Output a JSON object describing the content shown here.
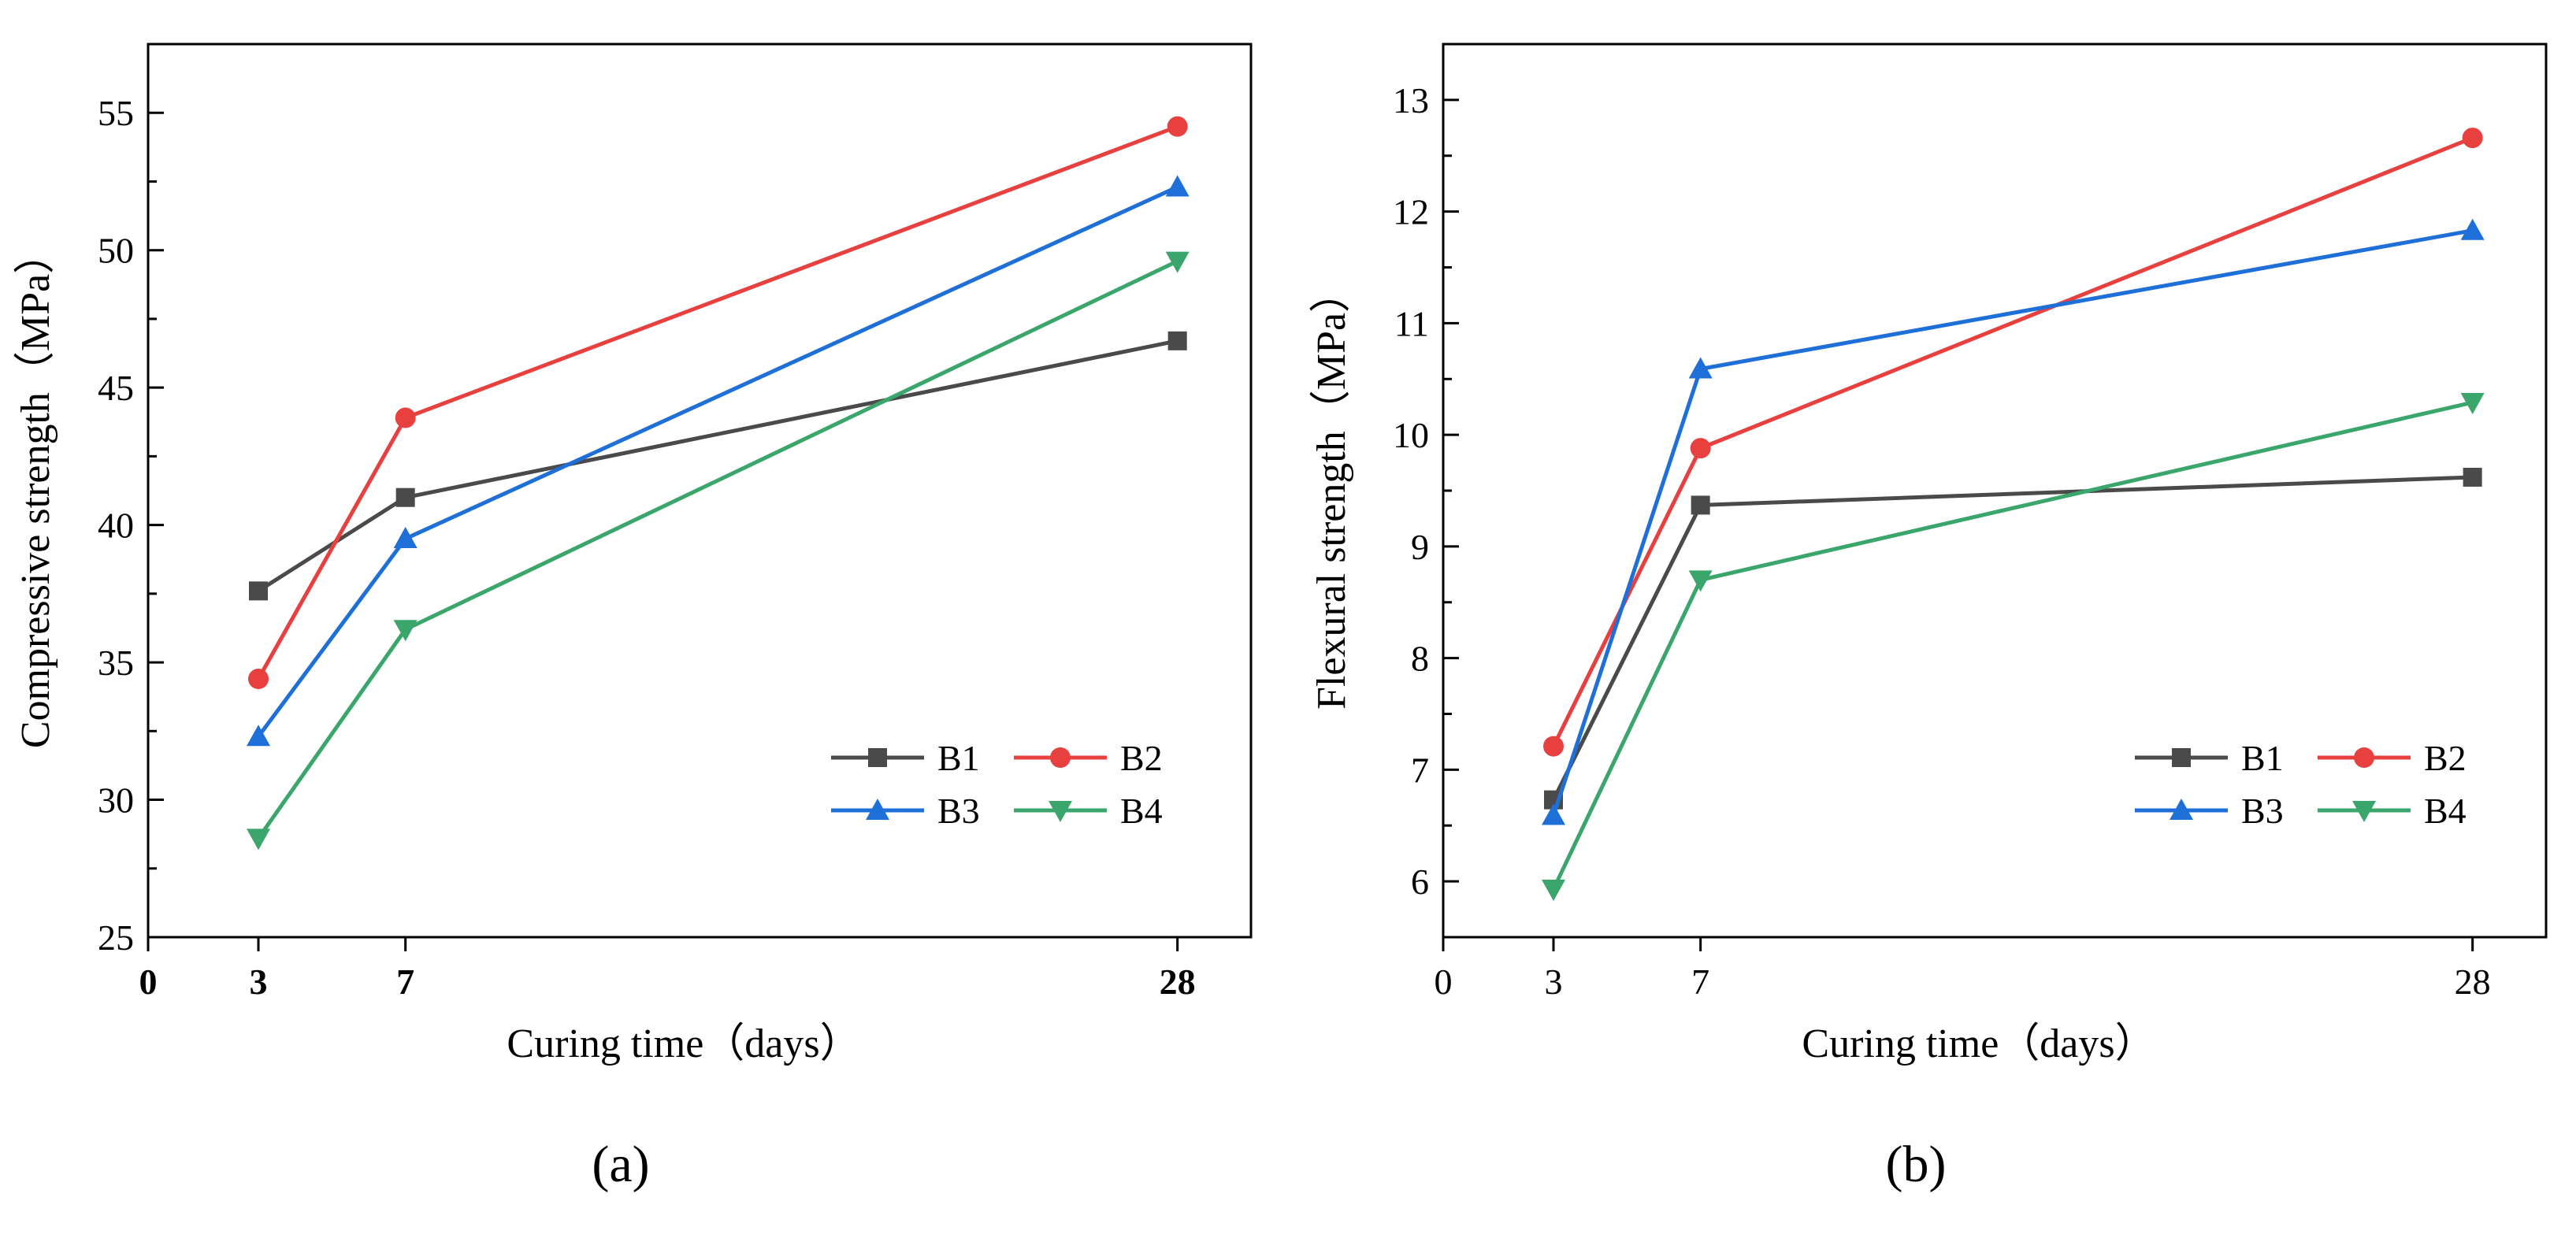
{
  "chart_data": [
    {
      "type": "line",
      "panel_label": "(a)",
      "xlabel": "Curing time（days）",
      "ylabel": "Compressive strength（MPa）",
      "x": [
        3,
        7,
        28
      ],
      "xlim": [
        0,
        30
      ],
      "ylim": [
        25,
        57.5
      ],
      "xticks": [
        0,
        3,
        7,
        28
      ],
      "xtick_labels": [
        "0",
        "3",
        "7",
        "28"
      ],
      "yticks": [
        25,
        30,
        35,
        40,
        45,
        50,
        55
      ],
      "ytick_labels": [
        "25",
        "30",
        "35",
        "40",
        "45",
        "50",
        "55"
      ],
      "grid": false,
      "legend_position": "bottom-right",
      "series": [
        {
          "name": "B1",
          "values": [
            37.6,
            41.0,
            46.7
          ],
          "color": "#4a4a4a",
          "marker": "square"
        },
        {
          "name": "B2",
          "values": [
            34.4,
            43.9,
            54.5
          ],
          "color": "#e8403f",
          "marker": "circle"
        },
        {
          "name": "B3",
          "values": [
            32.3,
            39.5,
            52.3
          ],
          "color": "#1f6fd8",
          "marker": "triangle-up"
        },
        {
          "name": "B4",
          "values": [
            28.6,
            36.2,
            49.6
          ],
          "color": "#3aa66b",
          "marker": "triangle-down"
        }
      ]
    },
    {
      "type": "line",
      "panel_label": "(b)",
      "xlabel": "Curing time（days）",
      "ylabel": "Flexural strength（MPa）",
      "x": [
        3,
        7,
        28
      ],
      "xlim": [
        0,
        30
      ],
      "ylim": [
        5.5,
        13.5
      ],
      "xticks": [
        0,
        3,
        7,
        28
      ],
      "xtick_labels": [
        "0",
        "3",
        "7",
        "28"
      ],
      "yticks": [
        6,
        7,
        8,
        9,
        10,
        11,
        12,
        13
      ],
      "ytick_labels": [
        "6",
        "7",
        "8",
        "9",
        "10",
        "11",
        "12",
        "13"
      ],
      "grid": false,
      "legend_position": "bottom-right",
      "series": [
        {
          "name": "B1",
          "values": [
            6.73,
            9.37,
            9.62
          ],
          "color": "#4a4a4a",
          "marker": "square"
        },
        {
          "name": "B2",
          "values": [
            7.21,
            9.88,
            12.66
          ],
          "color": "#e8403f",
          "marker": "circle"
        },
        {
          "name": "B3",
          "values": [
            6.59,
            10.59,
            11.83
          ],
          "color": "#1f6fd8",
          "marker": "triangle-up"
        },
        {
          "name": "B4",
          "values": [
            5.93,
            8.7,
            10.29
          ],
          "color": "#3aa66b",
          "marker": "triangle-down"
        }
      ]
    }
  ]
}
